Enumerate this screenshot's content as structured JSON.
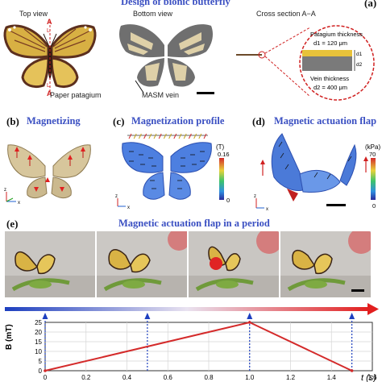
{
  "panel_a": {
    "letter": "(a)",
    "title": "Design of bionic butterfly",
    "top_view": "Top view",
    "bottom_view": "Bottom view",
    "cross_section": "Cross section A−A",
    "marker_top": "A",
    "marker_bottom": "A",
    "marker_L_top": "L",
    "marker_L_bottom": "L",
    "paper_patagium": "Paper patagium",
    "masm_vein": "MASM vein",
    "patagium_thickness": "Patagium thickness",
    "d1": "d1 = 120 μm",
    "vein_thickness": "Vein thickness",
    "d2": "d2 = 400 μm",
    "d1_tag": "d1",
    "d2_tag": "d2"
  },
  "panel_b": {
    "letter": "(b)",
    "title": "Magnetizing"
  },
  "panel_c": {
    "letter": "(c)",
    "title": "Magnetization profile",
    "unit": "(T)",
    "scale_max": "0.16",
    "scale_min": "0"
  },
  "panel_d": {
    "letter": "(d)",
    "title": "Magnetic actuation flap",
    "unit": "(kPa)",
    "scale_max": "70",
    "scale_min": "0"
  },
  "panel_e": {
    "letter": "(e)",
    "title": "Magnetic actuation flap in a period",
    "ylabel": "B (mT)",
    "xlabel": "t (s)"
  },
  "axis_labels": {
    "z": "z",
    "y": "y",
    "x": "x"
  },
  "colors": {
    "title_blue": "#3a4fc2",
    "plot_line": "#d42a2a",
    "marker_blue": "#1d3fbf",
    "wing_tan": "#d7c69c",
    "vein_gray": "#6f6f6f"
  },
  "chart_data": {
    "type": "line",
    "x": [
      0,
      1.0,
      1.5
    ],
    "y": [
      0,
      25,
      0
    ],
    "xlim": [
      0,
      1.6
    ],
    "ylim": [
      0,
      25
    ],
    "xticks": [
      "0",
      "0.2",
      "0.4",
      "0.6",
      "0.8",
      "1.0",
      "1.2",
      "1.4",
      "1.6"
    ],
    "yticks": [
      "0",
      "5",
      "10",
      "15",
      "20",
      "25"
    ],
    "xlabel": "t (s)",
    "ylabel": "B (mT)",
    "grid": true,
    "markers_t": [
      0,
      0.5,
      1.0,
      1.5
    ]
  }
}
